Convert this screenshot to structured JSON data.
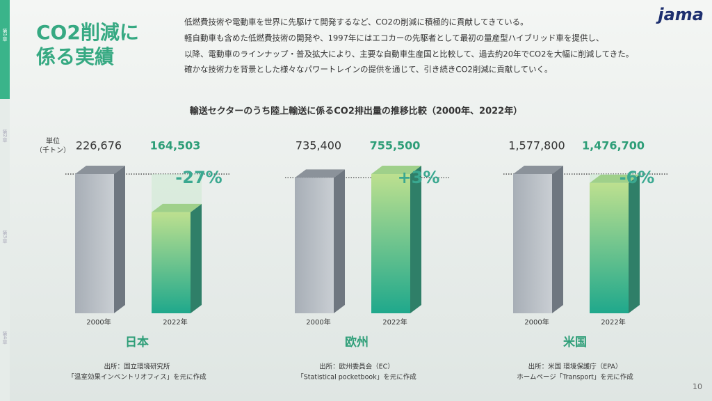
{
  "slide": {
    "title_lines": [
      "CO2削減に",
      "係る実績"
    ],
    "intro_lines": [
      "低燃費技術や電動車を世界に先駆けて開発するなど、CO2の削減に積極的に貢献してきている。",
      "軽自動車も含めた低燃費技術の開発や、1997年にはエコカーの先駆者として最初の量産型ハイブリッド車を提供し、",
      "以降、電動車のラインナップ・普及拡大により、主要な自動車生産国と比較して、過去約20年でCO2を大幅に削減してきた。",
      "確かな技術力を背景とした様々なパワートレインの提供を通じて、引き続きCO2削減に貢献していく。"
    ],
    "logo": "jama",
    "chapters": [
      "第1章",
      "第2章",
      "第3章",
      "第4章"
    ],
    "heading": "輸送セクターのうち陸上輸送に係るCO2排出量の推移比較（2000年、2022年）",
    "unit_lines": [
      "単位",
      "（千トン）"
    ],
    "page_number": "10"
  },
  "chart_data": [
    {
      "type": "bar",
      "title": "日本",
      "categories": [
        "2000年",
        "2022年"
      ],
      "values": [
        226676,
        164503
      ],
      "value_labels": [
        "226,676",
        "164,503"
      ],
      "annotation": "-27%",
      "source_lines": [
        "出所：国立環境研究所",
        "「温室効果インベントリオフィス」を元に作成"
      ]
    },
    {
      "type": "bar",
      "title": "欧州",
      "categories": [
        "2000年",
        "2022年"
      ],
      "values": [
        735400,
        755500
      ],
      "value_labels": [
        "735,400",
        "755,500"
      ],
      "annotation": "+3%",
      "source_lines": [
        "出所：欧州委員会（EC）",
        "「Statistical pocketbook」を元に作成"
      ]
    },
    {
      "type": "bar",
      "title": "米国",
      "categories": [
        "2000年",
        "2022年"
      ],
      "values": [
        1577800,
        1476700
      ],
      "value_labels": [
        "1,577,800",
        "1,476,700"
      ],
      "annotation": "-6%",
      "source_lines": [
        "出所：米国 環境保護庁（EPA）",
        "ホームページ「Transport」を元に作成"
      ]
    }
  ]
}
